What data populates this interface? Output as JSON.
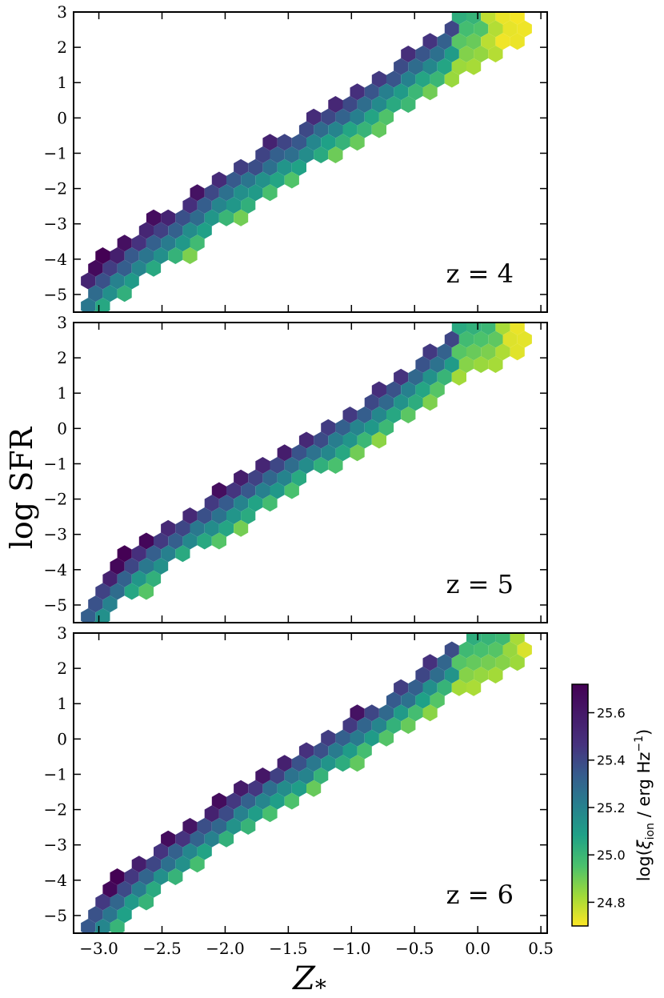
{
  "figure": {
    "ylabel": "log SFR",
    "xlabel": "Z",
    "xlabel_subscript": "*"
  },
  "colorbar": {
    "label": "log(ξ_ion / erg Hz^-1)",
    "label_main": "log(",
    "label_xi": "ξ",
    "label_sub": "ion",
    "label_rest": " / erg Hz",
    "label_sup": "−1",
    "label_close": ")",
    "range": [
      24.7,
      25.72
    ],
    "tick_values": [
      24.8,
      25.0,
      25.2,
      25.4,
      25.6
    ],
    "tick_labels": [
      "24.8",
      "25.0",
      "25.2",
      "25.4",
      "25.6"
    ],
    "colormap": "viridis_r"
  },
  "chart_data": [
    {
      "type": "heatmap",
      "subtype": "hexbin",
      "annotation": "z = 4",
      "xlim": [
        -3.2,
        0.55
      ],
      "ylim": [
        -5.5,
        3
      ],
      "xticks": [
        -3.0,
        -2.5,
        -2.0,
        -1.5,
        -1.0,
        -0.5,
        0.0,
        0.5
      ],
      "xtick_labels": [
        "−3.0",
        "−2.5",
        "−2.0",
        "−1.5",
        "−1.0",
        "−0.5",
        "0.0",
        "0.5"
      ],
      "yticks": [
        -5,
        -4,
        -3,
        -2,
        -1,
        0,
        1,
        2,
        3
      ],
      "ytick_labels": [
        "−5",
        "−4",
        "−3",
        "−2",
        "−1",
        "0",
        "1",
        "2",
        "3"
      ],
      "show_xtick_labels": false,
      "ridge": [
        [
          -3.05,
          -5.0
        ],
        [
          -2.7,
          -4.0
        ],
        [
          -2.3,
          -3.0
        ],
        [
          -1.9,
          -2.0
        ],
        [
          -1.45,
          -1.0
        ],
        [
          -1.0,
          0.0
        ],
        [
          -0.55,
          1.0
        ],
        [
          -0.2,
          2.0
        ],
        [
          0.25,
          2.7
        ]
      ],
      "band_width": 0.85,
      "hot_region": {
        "x_min": 0.05,
        "y_min": 0.5,
        "color_value": 24.72
      }
    },
    {
      "type": "heatmap",
      "subtype": "hexbin",
      "annotation": "z = 5",
      "xlim": [
        -3.2,
        0.55
      ],
      "ylim": [
        -5.5,
        3
      ],
      "xticks": [
        -3.0,
        -2.5,
        -2.0,
        -1.5,
        -1.0,
        -0.5,
        0.0,
        0.5
      ],
      "xtick_labels": [
        "−3.0",
        "−2.5",
        "−2.0",
        "−1.5",
        "−1.0",
        "−0.5",
        "0.0",
        "0.5"
      ],
      "yticks": [
        -5,
        -4,
        -3,
        -2,
        -1,
        0,
        1,
        2,
        3
      ],
      "ytick_labels": [
        "−5",
        "−4",
        "−3",
        "−2",
        "−1",
        "0",
        "1",
        "2",
        "3"
      ],
      "show_xtick_labels": false,
      "ridge": [
        [
          -3.05,
          -5.2
        ],
        [
          -2.7,
          -4.0
        ],
        [
          -2.3,
          -3.0
        ],
        [
          -1.85,
          -2.0
        ],
        [
          -1.4,
          -1.0
        ],
        [
          -0.95,
          0.0
        ],
        [
          -0.55,
          1.0
        ],
        [
          -0.2,
          2.0
        ],
        [
          0.2,
          2.6
        ]
      ],
      "band_width": 0.75,
      "hot_region": {
        "x_min": 0.15,
        "y_min": 1.6,
        "color_value": 24.75
      }
    },
    {
      "type": "heatmap",
      "subtype": "hexbin",
      "annotation": "z = 6",
      "xlim": [
        -3.2,
        0.55
      ],
      "ylim": [
        -5.5,
        3
      ],
      "xticks": [
        -3.0,
        -2.5,
        -2.0,
        -1.5,
        -1.0,
        -0.5,
        0.0,
        0.5
      ],
      "xtick_labels": [
        "−3.0",
        "−2.5",
        "−2.0",
        "−1.5",
        "−1.0",
        "−0.5",
        "0.0",
        "0.5"
      ],
      "yticks": [
        -5,
        -4,
        -3,
        -2,
        -1,
        0,
        1,
        2,
        3
      ],
      "ytick_labels": [
        "−5",
        "−4",
        "−3",
        "−2",
        "−1",
        "0",
        "1",
        "2",
        "3"
      ],
      "show_xtick_labels": true,
      "ridge": [
        [
          -3.0,
          -5.1
        ],
        [
          -2.65,
          -4.0
        ],
        [
          -2.25,
          -3.0
        ],
        [
          -1.85,
          -2.0
        ],
        [
          -1.4,
          -1.0
        ],
        [
          -0.95,
          0.0
        ],
        [
          -0.55,
          1.0
        ],
        [
          -0.2,
          2.0
        ],
        [
          0.2,
          2.5
        ]
      ],
      "band_width": 0.72,
      "hot_region": {
        "x_min": 0.25,
        "y_min": 1.8,
        "color_value": 24.78
      }
    }
  ]
}
